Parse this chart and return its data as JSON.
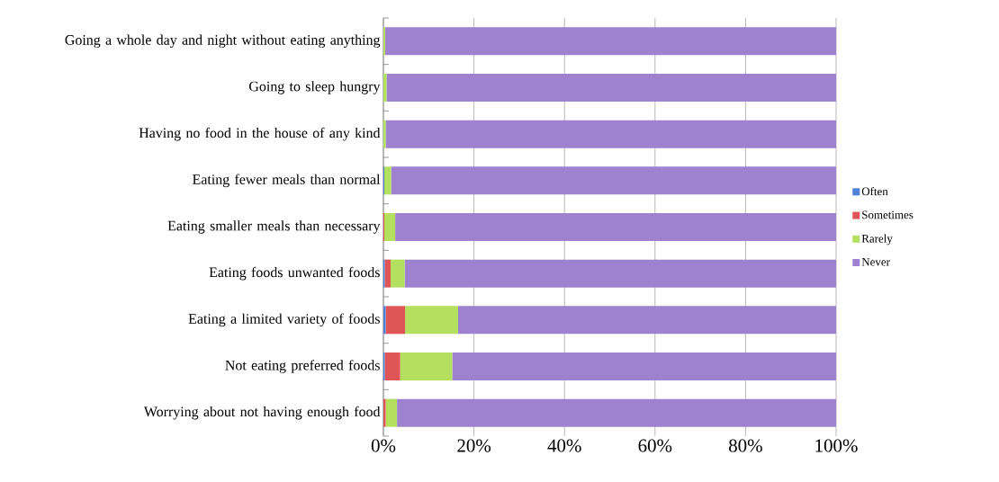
{
  "chart_data": {
    "type": "bar",
    "orientation": "horizontal",
    "stacked": true,
    "categories": [
      "Going a whole day and night without eating anything",
      "Going to sleep hungry",
      "Having no food in the house of any kind",
      "Eating fewer meals than normal",
      "Eating smaller meals than necessary",
      "Eating foods unwanted foods",
      "Eating a limited variety of foods",
      "Not eating preferred foods",
      "Worrying about not having enough food"
    ],
    "series": [
      {
        "name": "Often",
        "color": "#4f81d8",
        "values": [
          0,
          0,
          0,
          0.2,
          0,
          0.3,
          0.5,
          0.3,
          0
        ]
      },
      {
        "name": "Sometimes",
        "color": "#e05555",
        "values": [
          0,
          0,
          0,
          0,
          0.2,
          1.3,
          4.3,
          3.4,
          0.5
        ]
      },
      {
        "name": "Rarely",
        "color": "#b3e05e",
        "values": [
          0.4,
          0.7,
          0.5,
          1.5,
          2.4,
          3.1,
          11.7,
          11.5,
          2.5
        ]
      },
      {
        "name": "Never",
        "color": "#9e82cf",
        "values": [
          99.6,
          99.3,
          99.5,
          98.3,
          97.4,
          95.3,
          83.5,
          84.8,
          97.0
        ]
      }
    ],
    "xlim": [
      0,
      100
    ],
    "xticks": [
      {
        "value": 0,
        "label": "0%"
      },
      {
        "value": 20,
        "label": "20%"
      },
      {
        "value": 40,
        "label": "40%"
      },
      {
        "value": 60,
        "label": "60%"
      },
      {
        "value": 80,
        "label": "80%"
      },
      {
        "value": 100,
        "label": "100%"
      }
    ],
    "grid": "x",
    "legend": "right"
  }
}
